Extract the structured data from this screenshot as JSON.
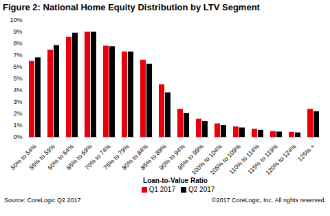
{
  "chart_data": {
    "type": "bar",
    "title": "Figure 2: National Home Equity Distribution by LTV Segment",
    "x_label": "Loan-to-Value Ratio",
    "categories": [
      "50% to 54%",
      "55% to 59%",
      "60% to 64%",
      "65% to 69%",
      "70% to 74%",
      "75% to 79%",
      "80% to 84%",
      "85% to 89%",
      "90% to 94%",
      "95% to 99%",
      "100% to 104%",
      "105% to 109%",
      "110% to 114%",
      "115% to 119%",
      "120% to 124%",
      "125% +"
    ],
    "series": [
      {
        "name": "Q1 2017",
        "color": "#e8000b",
        "values": [
          6.5,
          7.45,
          8.55,
          9.0,
          7.8,
          7.3,
          6.6,
          4.5,
          2.4,
          1.55,
          1.15,
          0.9,
          0.7,
          0.5,
          0.42,
          2.4
        ]
      },
      {
        "name": "Q2 2017",
        "color": "#000000",
        "values": [
          6.8,
          7.85,
          8.9,
          9.0,
          7.75,
          7.3,
          6.25,
          3.8,
          2.05,
          1.35,
          1.0,
          0.8,
          0.6,
          0.45,
          0.38,
          2.2
        ]
      }
    ],
    "ylim": [
      0,
      10
    ],
    "yticks": [
      {
        "value": 0,
        "label": "0%"
      },
      {
        "value": 1,
        "label": "1%"
      },
      {
        "value": 2,
        "label": "2%"
      },
      {
        "value": 3,
        "label": "3%"
      },
      {
        "value": 4,
        "label": "4%"
      },
      {
        "value": 5,
        "label": "5%"
      },
      {
        "value": 6,
        "label": "6%"
      },
      {
        "value": 7,
        "label": "7%"
      },
      {
        "value": 8,
        "label": "8%"
      },
      {
        "value": 9,
        "label": "9%"
      },
      {
        "value": 10,
        "label": "10%"
      }
    ],
    "grid": false,
    "legend": "bottom",
    "source": "Source: CoreLogic Q2 2017",
    "copyright": "©2017 CoreLogic, Inc. All rights reserved."
  }
}
